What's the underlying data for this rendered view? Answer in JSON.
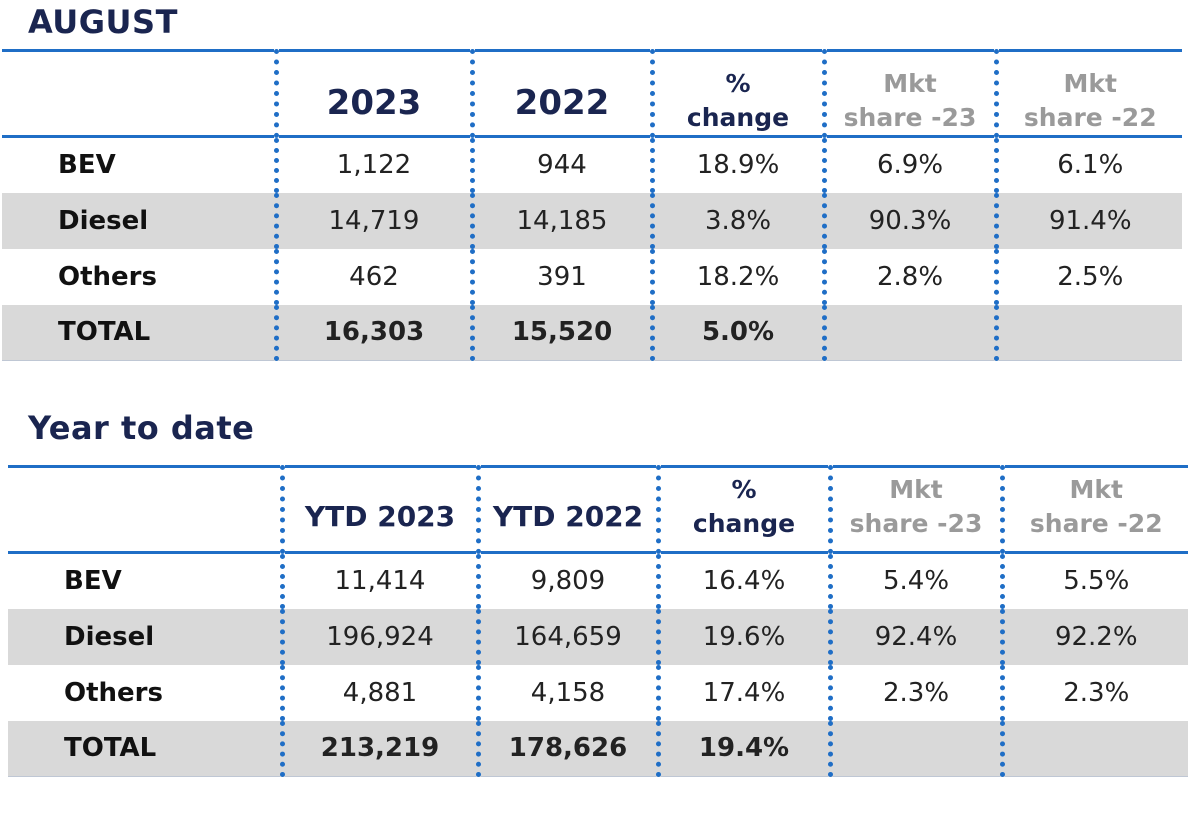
{
  "sections": [
    {
      "title": "AUGUST",
      "headers": [
        "",
        "2023",
        "2022",
        "%\nchange",
        "Mkt\nshare -23",
        "Mkt\nshare -22"
      ],
      "rows": [
        [
          "BEV",
          "1,122",
          "944",
          "18.9%",
          "6.9%",
          "6.1%"
        ],
        [
          "Diesel",
          "14,719",
          "14,185",
          "3.8%",
          "90.3%",
          "91.4%"
        ],
        [
          "Others",
          "462",
          "391",
          "18.2%",
          "2.8%",
          "2.5%"
        ],
        [
          "TOTAL",
          "16,303",
          "15,520",
          "5.0%",
          "",
          ""
        ]
      ]
    },
    {
      "title": "Year to date",
      "headers": [
        "",
        "YTD 2023",
        "YTD 2022",
        "%\nchange",
        "Mkt\nshare -23",
        "Mkt\nshare -22"
      ],
      "rows": [
        [
          "BEV",
          "11,414",
          "9,809",
          "16.4%",
          "5.4%",
          "5.5%"
        ],
        [
          "Diesel",
          "196,924",
          "164,659",
          "19.6%",
          "92.4%",
          "92.2%"
        ],
        [
          "Others",
          "4,881",
          "4,158",
          "17.4%",
          "2.3%",
          "2.3%"
        ],
        [
          "TOTAL",
          "213,219",
          "178,626",
          "19.4%",
          "",
          ""
        ]
      ]
    }
  ],
  "colors": {
    "title": "#1a2550",
    "accent_line": "#1f6ec6",
    "muted_header": "#9a9a9a",
    "row_shade": "#d9d9d9"
  }
}
